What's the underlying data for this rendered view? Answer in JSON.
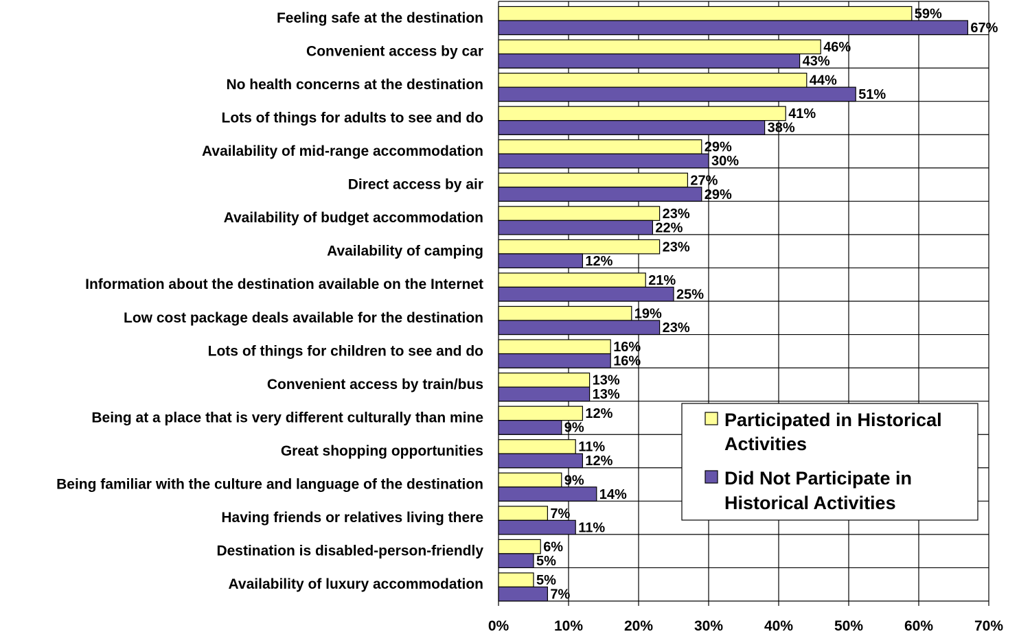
{
  "chart_data": {
    "type": "bar",
    "orientation": "horizontal",
    "categories": [
      "Feeling safe at the destination",
      "Convenient access by car",
      "No health concerns at the destination",
      "Lots of things for adults to see and do",
      "Availability of mid-range accommodation",
      "Direct access by air",
      "Availability of budget accommodation",
      "Availability of camping",
      "Information about the destination available on the Internet",
      "Low cost package deals available for the destination",
      "Lots of things for children to see and do",
      "Convenient access by train/bus",
      "Being at a place that is very different culturally than mine",
      "Great shopping opportunities",
      "Being familiar with the culture and language of the destination",
      "Having friends or relatives living there",
      "Destination is disabled-person-friendly",
      "Availability of luxury accommodation"
    ],
    "series": [
      {
        "name": "Participated in Historical Activities",
        "legend_lines": [
          "Participated in Historical",
          "Activities"
        ],
        "color": "#ffff99",
        "values": [
          59,
          46,
          44,
          41,
          29,
          27,
          23,
          23,
          21,
          19,
          16,
          13,
          12,
          11,
          9,
          7,
          6,
          5
        ],
        "labels": [
          "59%",
          "46%",
          "44%",
          "41%",
          "29%",
          "27%",
          "23%",
          "23%",
          "21%",
          "19%",
          "16%",
          "13%",
          "12%",
          "11%",
          "9%",
          "7%",
          "6%",
          "5%"
        ]
      },
      {
        "name": "Did Not Participate in Historical Activities",
        "legend_lines": [
          "Did Not Participate in",
          "Historical Activities"
        ],
        "color": "#6655aa",
        "values": [
          67,
          43,
          51,
          38,
          30,
          29,
          22,
          12,
          25,
          23,
          16,
          13,
          9,
          12,
          14,
          11,
          5,
          7
        ],
        "labels": [
          "67%",
          "43%",
          "51%",
          "38%",
          "30%",
          "29%",
          "22%",
          "12%",
          "25%",
          "23%",
          "16%",
          "13%",
          "9%",
          "12%",
          "14%",
          "11%",
          "5%",
          "7%"
        ]
      }
    ],
    "xlim": [
      0,
      70
    ],
    "xticks": [
      0,
      10,
      20,
      30,
      40,
      50,
      60,
      70
    ],
    "xtick_labels": [
      "0%",
      "10%",
      "20%",
      "30%",
      "40%",
      "50%",
      "60%",
      "70%"
    ],
    "grid": true,
    "legend_position": "lower-right"
  }
}
